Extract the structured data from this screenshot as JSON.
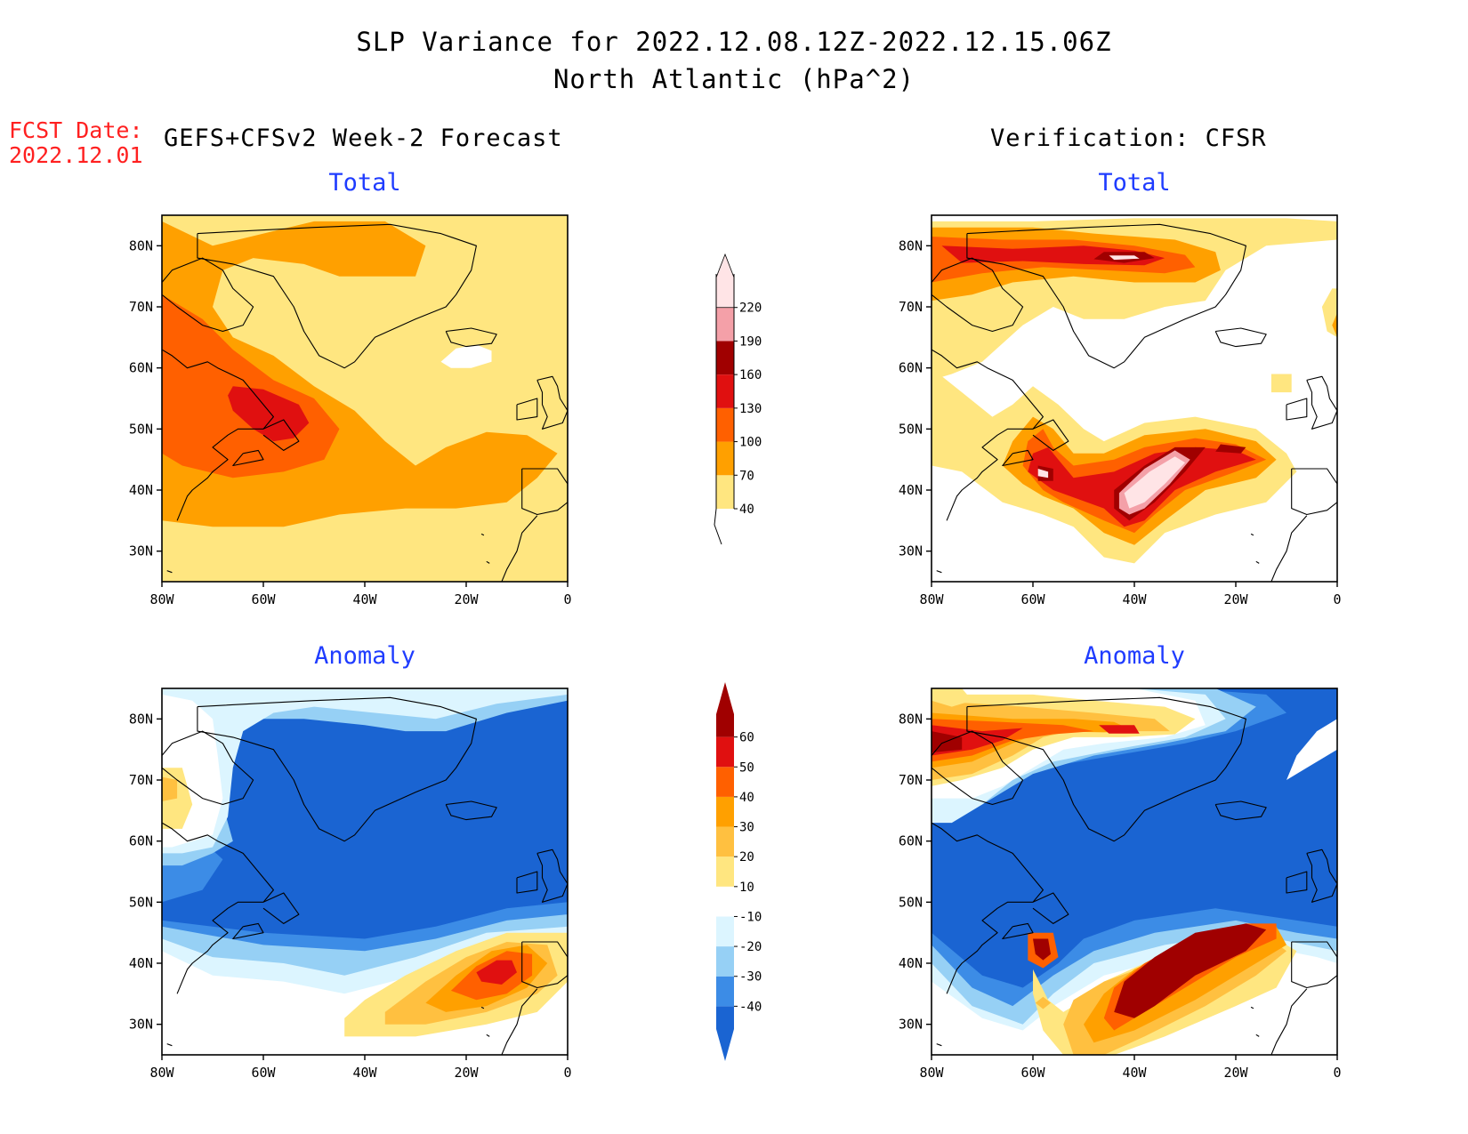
{
  "figure": {
    "title_line1": "SLP Variance for 2022.12.08.12Z-2022.12.15.06Z",
    "title_line2": "North Atlantic (hPa^2)",
    "fcst_label": "FCST Date:",
    "fcst_date": "2022.12.01",
    "left_column_title": "GEFS+CFSv2 Week-2 Forecast",
    "right_column_title": "Verification: CFSR"
  },
  "panels": {
    "fcst_total": {
      "title": "Total"
    },
    "fcst_anom": {
      "title": "Anomaly"
    },
    "verif_total": {
      "title": "Total"
    },
    "verif_anom": {
      "title": "Anomaly"
    }
  },
  "chart_data": [
    {
      "type": "heatmap",
      "panel": "forecast-total",
      "title": "Total",
      "xlim": [
        -80,
        0
      ],
      "ylim": [
        25,
        85
      ],
      "x_ticks": [
        "80W",
        "60W",
        "40W",
        "20W",
        "0"
      ],
      "y_ticks": [
        "30N",
        "40N",
        "50N",
        "60N",
        "70N",
        "80N"
      ],
      "contour_levels": [
        40,
        70,
        100,
        130,
        160,
        190,
        220
      ],
      "features": [
        {
          "label": "max",
          "lon": -56,
          "lat": 52,
          "class": "130-160"
        },
        {
          "label": "secondary",
          "lon": -13,
          "lat": 43,
          "class": "70-100"
        },
        {
          "label": "min",
          "lon": -22,
          "lat": 62,
          "class": "<40"
        }
      ]
    },
    {
      "type": "heatmap",
      "panel": "verification-total",
      "title": "Total",
      "xlim": [
        -80,
        0
      ],
      "ylim": [
        25,
        85
      ],
      "x_ticks": [
        "80W",
        "60W",
        "40W",
        "20W",
        "0"
      ],
      "y_ticks": [
        "30N",
        "40N",
        "50N",
        "60N",
        "70N",
        "80N"
      ],
      "contour_levels": [
        40,
        70,
        100,
        130,
        160,
        190,
        220
      ],
      "features": [
        {
          "label": "max",
          "lon": -36,
          "lat": 42,
          "class": ">220"
        },
        {
          "label": "max",
          "lon": -59,
          "lat": 43,
          "class": ">220"
        },
        {
          "label": "max",
          "lon": -42,
          "lat": 78,
          "class": ">220"
        },
        {
          "label": "secondary",
          "lon": -21,
          "lat": 47,
          "class": "160-190"
        }
      ]
    },
    {
      "type": "heatmap",
      "panel": "forecast-anomaly",
      "title": "Anomaly",
      "xlim": [
        -80,
        0
      ],
      "ylim": [
        25,
        85
      ],
      "x_ticks": [
        "80W",
        "60W",
        "40W",
        "20W",
        "0"
      ],
      "y_ticks": [
        "30N",
        "40N",
        "50N",
        "60N",
        "70N",
        "80N"
      ],
      "contour_levels": [
        -40,
        -30,
        -20,
        -10,
        10,
        20,
        30,
        40,
        50,
        60
      ],
      "features": [
        {
          "label": "max",
          "lon": -14,
          "lat": 39,
          "class": "50-60"
        },
        {
          "label": "min",
          "lon": -40,
          "lat": 60,
          "class": "<-40"
        }
      ]
    },
    {
      "type": "heatmap",
      "panel": "verification-anomaly",
      "title": "Anomaly",
      "xlim": [
        -80,
        0
      ],
      "ylim": [
        25,
        85
      ],
      "x_ticks": [
        "80W",
        "60W",
        "40W",
        "20W",
        "0"
      ],
      "y_ticks": [
        "30N",
        "40N",
        "50N",
        "60N",
        "70N",
        "80N"
      ],
      "contour_levels": [
        -40,
        -30,
        -20,
        -10,
        10,
        20,
        30,
        40,
        50,
        60
      ],
      "features": [
        {
          "label": "max",
          "lon": -33,
          "lat": 40,
          "class": ">60"
        },
        {
          "label": "max",
          "lon": -73,
          "lat": 76,
          "class": ">60"
        },
        {
          "label": "min",
          "lon": -40,
          "lat": 60,
          "class": "<-40"
        }
      ]
    }
  ],
  "colorbars": {
    "total": {
      "ticks": [
        "40",
        "70",
        "100",
        "130",
        "160",
        "190",
        "220"
      ],
      "colors": [
        "#ffe680",
        "#ffa000",
        "#ff6000",
        "#e01010",
        "#a00000",
        "#f4a0a8",
        "#ffe4e6"
      ]
    },
    "anomaly": {
      "ticks": [
        "-40",
        "-30",
        "-20",
        "-10",
        "10",
        "20",
        "30",
        "40",
        "50",
        "60"
      ],
      "colors": [
        "#1a64d2",
        "#3c8ce6",
        "#96d0f5",
        "#dcf5ff",
        "#ffffff",
        "#ffe680",
        "#ffc040",
        "#ffa000",
        "#ff6000",
        "#e01010",
        "#a00000"
      ]
    }
  },
  "palette": {
    "t_lt40": "#ffffff",
    "t_40": "#ffe680",
    "t_70": "#ffa000",
    "t_100": "#ff6000",
    "t_130": "#e01010",
    "t_160": "#a00000",
    "t_190": "#f4a0a8",
    "t_220": "#ffe4e6",
    "a_m40": "#1a64d2",
    "a_m30": "#3c8ce6",
    "a_m20": "#96d0f5",
    "a_m10": "#dcf5ff",
    "a_zero": "#ffffff",
    "a_10": "#ffe680",
    "a_20": "#ffc040",
    "a_30": "#ffa000",
    "a_40": "#ff6000",
    "a_50": "#e01010",
    "a_60": "#a00000"
  }
}
